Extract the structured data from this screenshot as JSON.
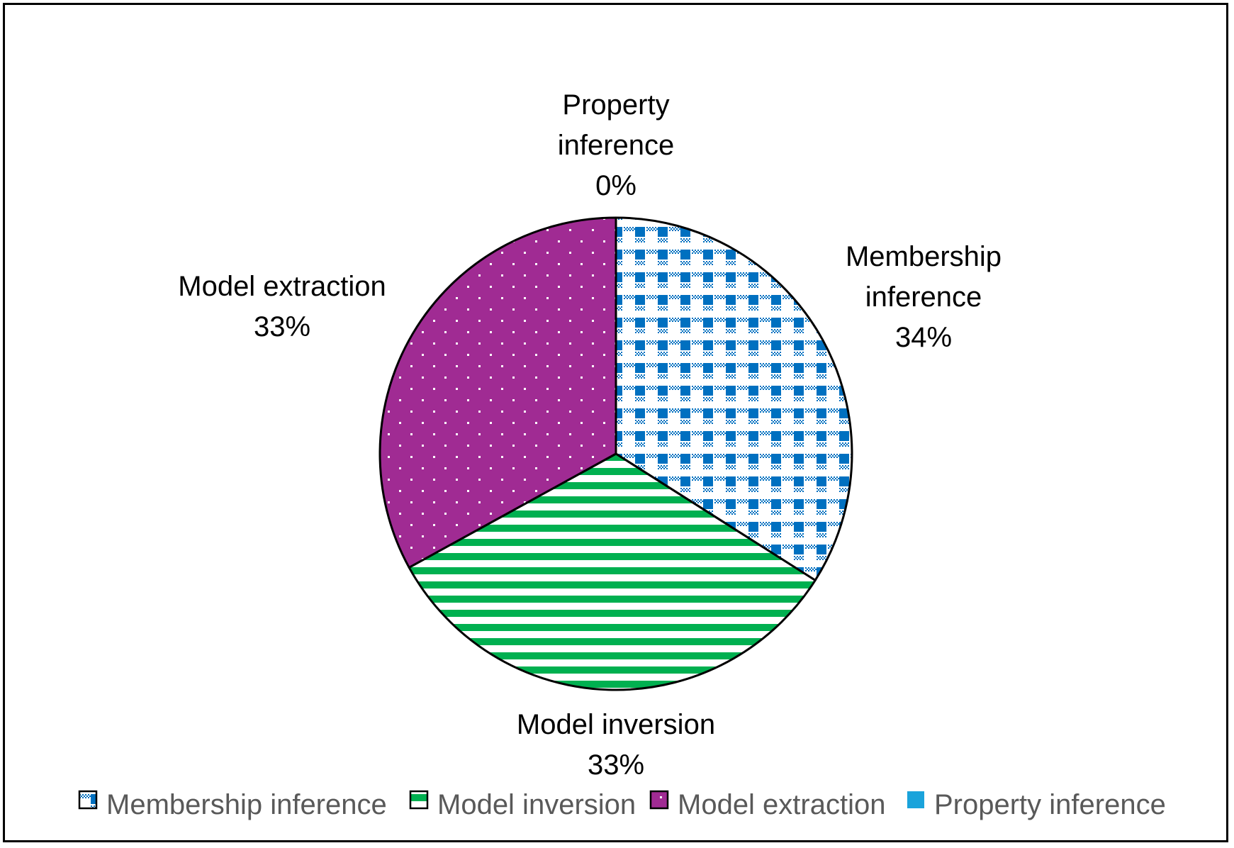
{
  "chart_data": {
    "type": "pie",
    "categories": [
      "Membership inference",
      "Model inversion",
      "Model extraction",
      "Property inference"
    ],
    "values": [
      34,
      33,
      33,
      0
    ],
    "data_labels": [
      {
        "lines": [
          "Membership",
          "inference",
          "34%"
        ]
      },
      {
        "lines": [
          "Model inversion",
          "33%"
        ]
      },
      {
        "lines": [
          "Model extraction",
          "33%"
        ]
      },
      {
        "lines": [
          "Property",
          "inference",
          "0%"
        ]
      }
    ],
    "colors": [
      "#0070C0",
      "#00B050",
      "#A02B93",
      "#1AA3DB"
    ],
    "patterns": [
      "checker",
      "horizontal-stripes",
      "dots",
      "solid"
    ],
    "legend_position": "bottom",
    "start_angle": "12 o'clock",
    "direction": "clockwise"
  }
}
